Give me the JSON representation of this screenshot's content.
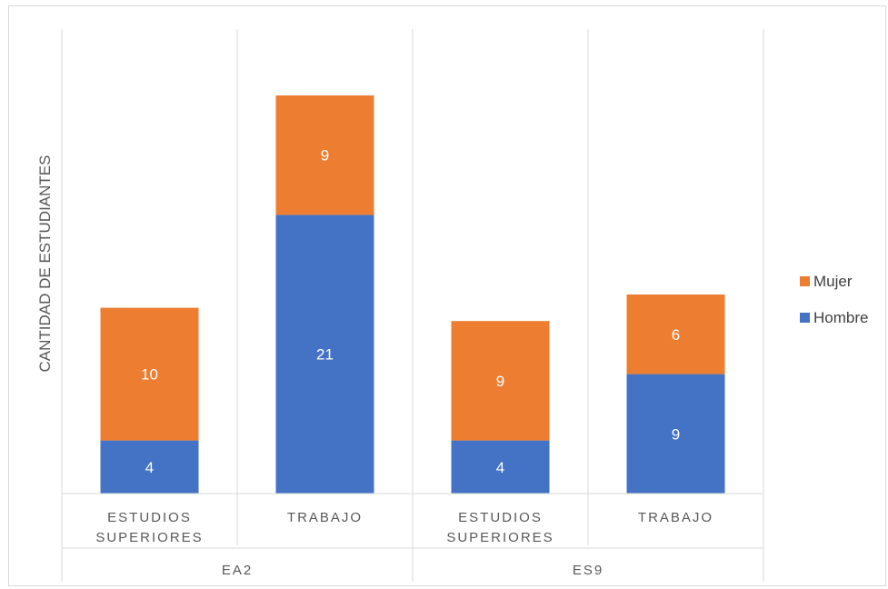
{
  "chart_data": {
    "type": "bar",
    "stacked": true,
    "ylabel": "CANTIDAD DE ESTUDIANTES",
    "groups": [
      {
        "label": "EA2",
        "categories": [
          [
            "ESTUDIOS",
            "SUPERIORES"
          ],
          [
            "TRABAJO"
          ]
        ]
      },
      {
        "label": "ES9",
        "categories": [
          [
            "ESTUDIOS",
            "SUPERIORES"
          ],
          [
            "TRABAJO"
          ]
        ]
      }
    ],
    "series": [
      {
        "name": "Hombre",
        "color": "#4472c4",
        "values": [
          4,
          21,
          4,
          9
        ]
      },
      {
        "name": "Mujer",
        "color": "#ed7d31",
        "values": [
          10,
          9,
          9,
          6
        ]
      }
    ],
    "legend_position": "right",
    "grid": false
  }
}
